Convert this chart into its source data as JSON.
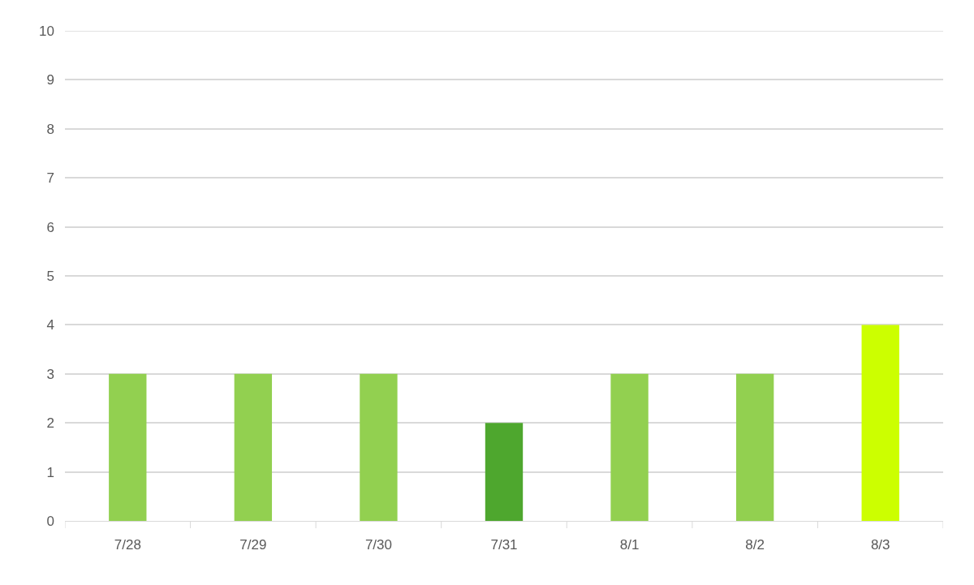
{
  "chart_data": {
    "type": "bar",
    "categories": [
      "7/28",
      "7/29",
      "7/30",
      "7/31",
      "8/1",
      "8/2",
      "8/3"
    ],
    "values": [
      3,
      3,
      3,
      2,
      3,
      3,
      4
    ],
    "colors": [
      "#92d050",
      "#92d050",
      "#92d050",
      "#4ea72e",
      "#92d050",
      "#92d050",
      "#ccff00"
    ],
    "ylim": [
      0,
      10
    ],
    "yticks": [
      0,
      1,
      2,
      3,
      4,
      5,
      6,
      7,
      8,
      9,
      10
    ],
    "grid": "y"
  }
}
